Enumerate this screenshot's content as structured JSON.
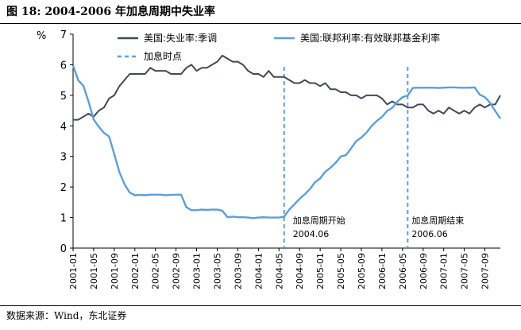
{
  "title": "图 18:  2004-2006 年加息周期中失业率",
  "source": "数据来源：Wind，东北证券",
  "chart_data": {
    "type": "line",
    "title": "2004-2006 年加息周期中失业率",
    "ylabel": "%",
    "xlabel": "",
    "ylim": [
      0,
      7
    ],
    "yticks": [
      "0",
      "1",
      "2",
      "3",
      "4",
      "5",
      "6",
      "7"
    ],
    "x_start": "2001-01",
    "x_end": "2007-12",
    "x_tick_labels": [
      "2001-01",
      "2001-05",
      "2001-09",
      "2002-01",
      "2002-05",
      "2002-09",
      "2003-01",
      "2003-05",
      "2003-09",
      "2004-01",
      "2004-05",
      "2004-09",
      "2005-01",
      "2005-05",
      "2005-09",
      "2006-01",
      "2006-05",
      "2006-09",
      "2007-01",
      "2007-05",
      "2007-09"
    ],
    "series": [
      {
        "name": "美国:失业率:季调",
        "color": "#404a57",
        "values": [
          4.2,
          4.2,
          4.3,
          4.4,
          4.3,
          4.5,
          4.6,
          4.9,
          5.0,
          5.3,
          5.5,
          5.7,
          5.7,
          5.7,
          5.7,
          5.9,
          5.8,
          5.8,
          5.8,
          5.7,
          5.7,
          5.7,
          5.9,
          6.0,
          5.8,
          5.9,
          5.9,
          6.0,
          6.1,
          6.3,
          6.2,
          6.1,
          6.1,
          6.0,
          5.8,
          5.7,
          5.7,
          5.6,
          5.8,
          5.6,
          5.6,
          5.6,
          5.5,
          5.4,
          5.4,
          5.5,
          5.4,
          5.4,
          5.3,
          5.4,
          5.2,
          5.2,
          5.1,
          5.1,
          5.0,
          5.0,
          4.9,
          5.0,
          5.0,
          5.0,
          4.9,
          4.7,
          4.8,
          4.7,
          4.7,
          4.6,
          4.6,
          4.7,
          4.7,
          4.5,
          4.4,
          4.5,
          4.4,
          4.6,
          4.5,
          4.4,
          4.5,
          4.4,
          4.6,
          4.7,
          4.6,
          4.7,
          4.7,
          5.0
        ]
      },
      {
        "name": "美国:联邦利率:有效联邦基金利率",
        "color": "#5d9fd6",
        "values": [
          5.98,
          5.49,
          5.31,
          4.8,
          4.21,
          3.97,
          3.77,
          3.65,
          3.07,
          2.49,
          2.09,
          1.82,
          1.73,
          1.74,
          1.73,
          1.75,
          1.75,
          1.75,
          1.73,
          1.74,
          1.75,
          1.75,
          1.34,
          1.24,
          1.24,
          1.26,
          1.25,
          1.26,
          1.26,
          1.22,
          1.01,
          1.03,
          1.01,
          1.01,
          1.0,
          0.98,
          1.0,
          1.01,
          1.0,
          1.0,
          1.0,
          1.03,
          1.26,
          1.43,
          1.61,
          1.76,
          1.93,
          2.16,
          2.28,
          2.5,
          2.63,
          2.79,
          3.0,
          3.04,
          3.26,
          3.5,
          3.62,
          3.78,
          4.0,
          4.16,
          4.29,
          4.49,
          4.59,
          4.79,
          4.94,
          4.99,
          5.24,
          5.25,
          5.25,
          5.25,
          5.25,
          5.24,
          5.25,
          5.26,
          5.26,
          5.25,
          5.25,
          5.25,
          5.26,
          5.02,
          4.94,
          4.76,
          4.49,
          4.24
        ]
      }
    ],
    "events": {
      "name": "加息时点",
      "color": "#5d9fd6",
      "markers": [
        {
          "x": "2004-06",
          "label": "加息周期开始",
          "date": "2004.06"
        },
        {
          "x": "2006-06",
          "label": "加息周期结束",
          "date": "2006.06"
        }
      ]
    },
    "legend": "top-center"
  }
}
